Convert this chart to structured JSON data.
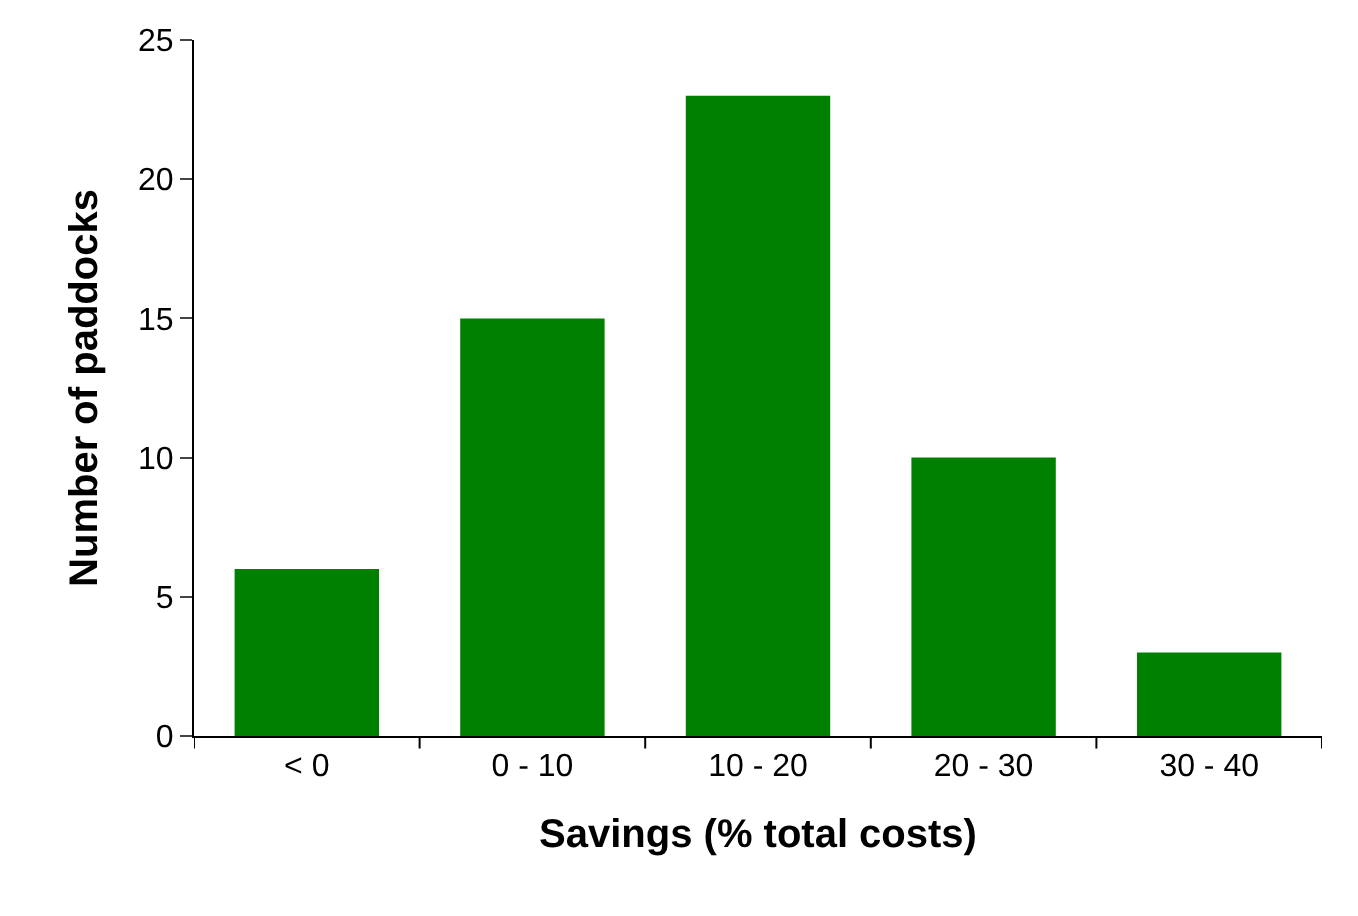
{
  "chart_data": {
    "type": "bar",
    "xlabel": "Savings (% total costs)",
    "ylabel": "Number of paddocks",
    "categories": [
      "< 0",
      "0 - 10",
      "10 - 20",
      "20 - 30",
      "30 - 40"
    ],
    "values": [
      6,
      15,
      23,
      10,
      3
    ],
    "color": "#008000",
    "ylim": [
      0,
      25
    ],
    "yticks": [
      0,
      5,
      10,
      15,
      20,
      25
    ]
  }
}
